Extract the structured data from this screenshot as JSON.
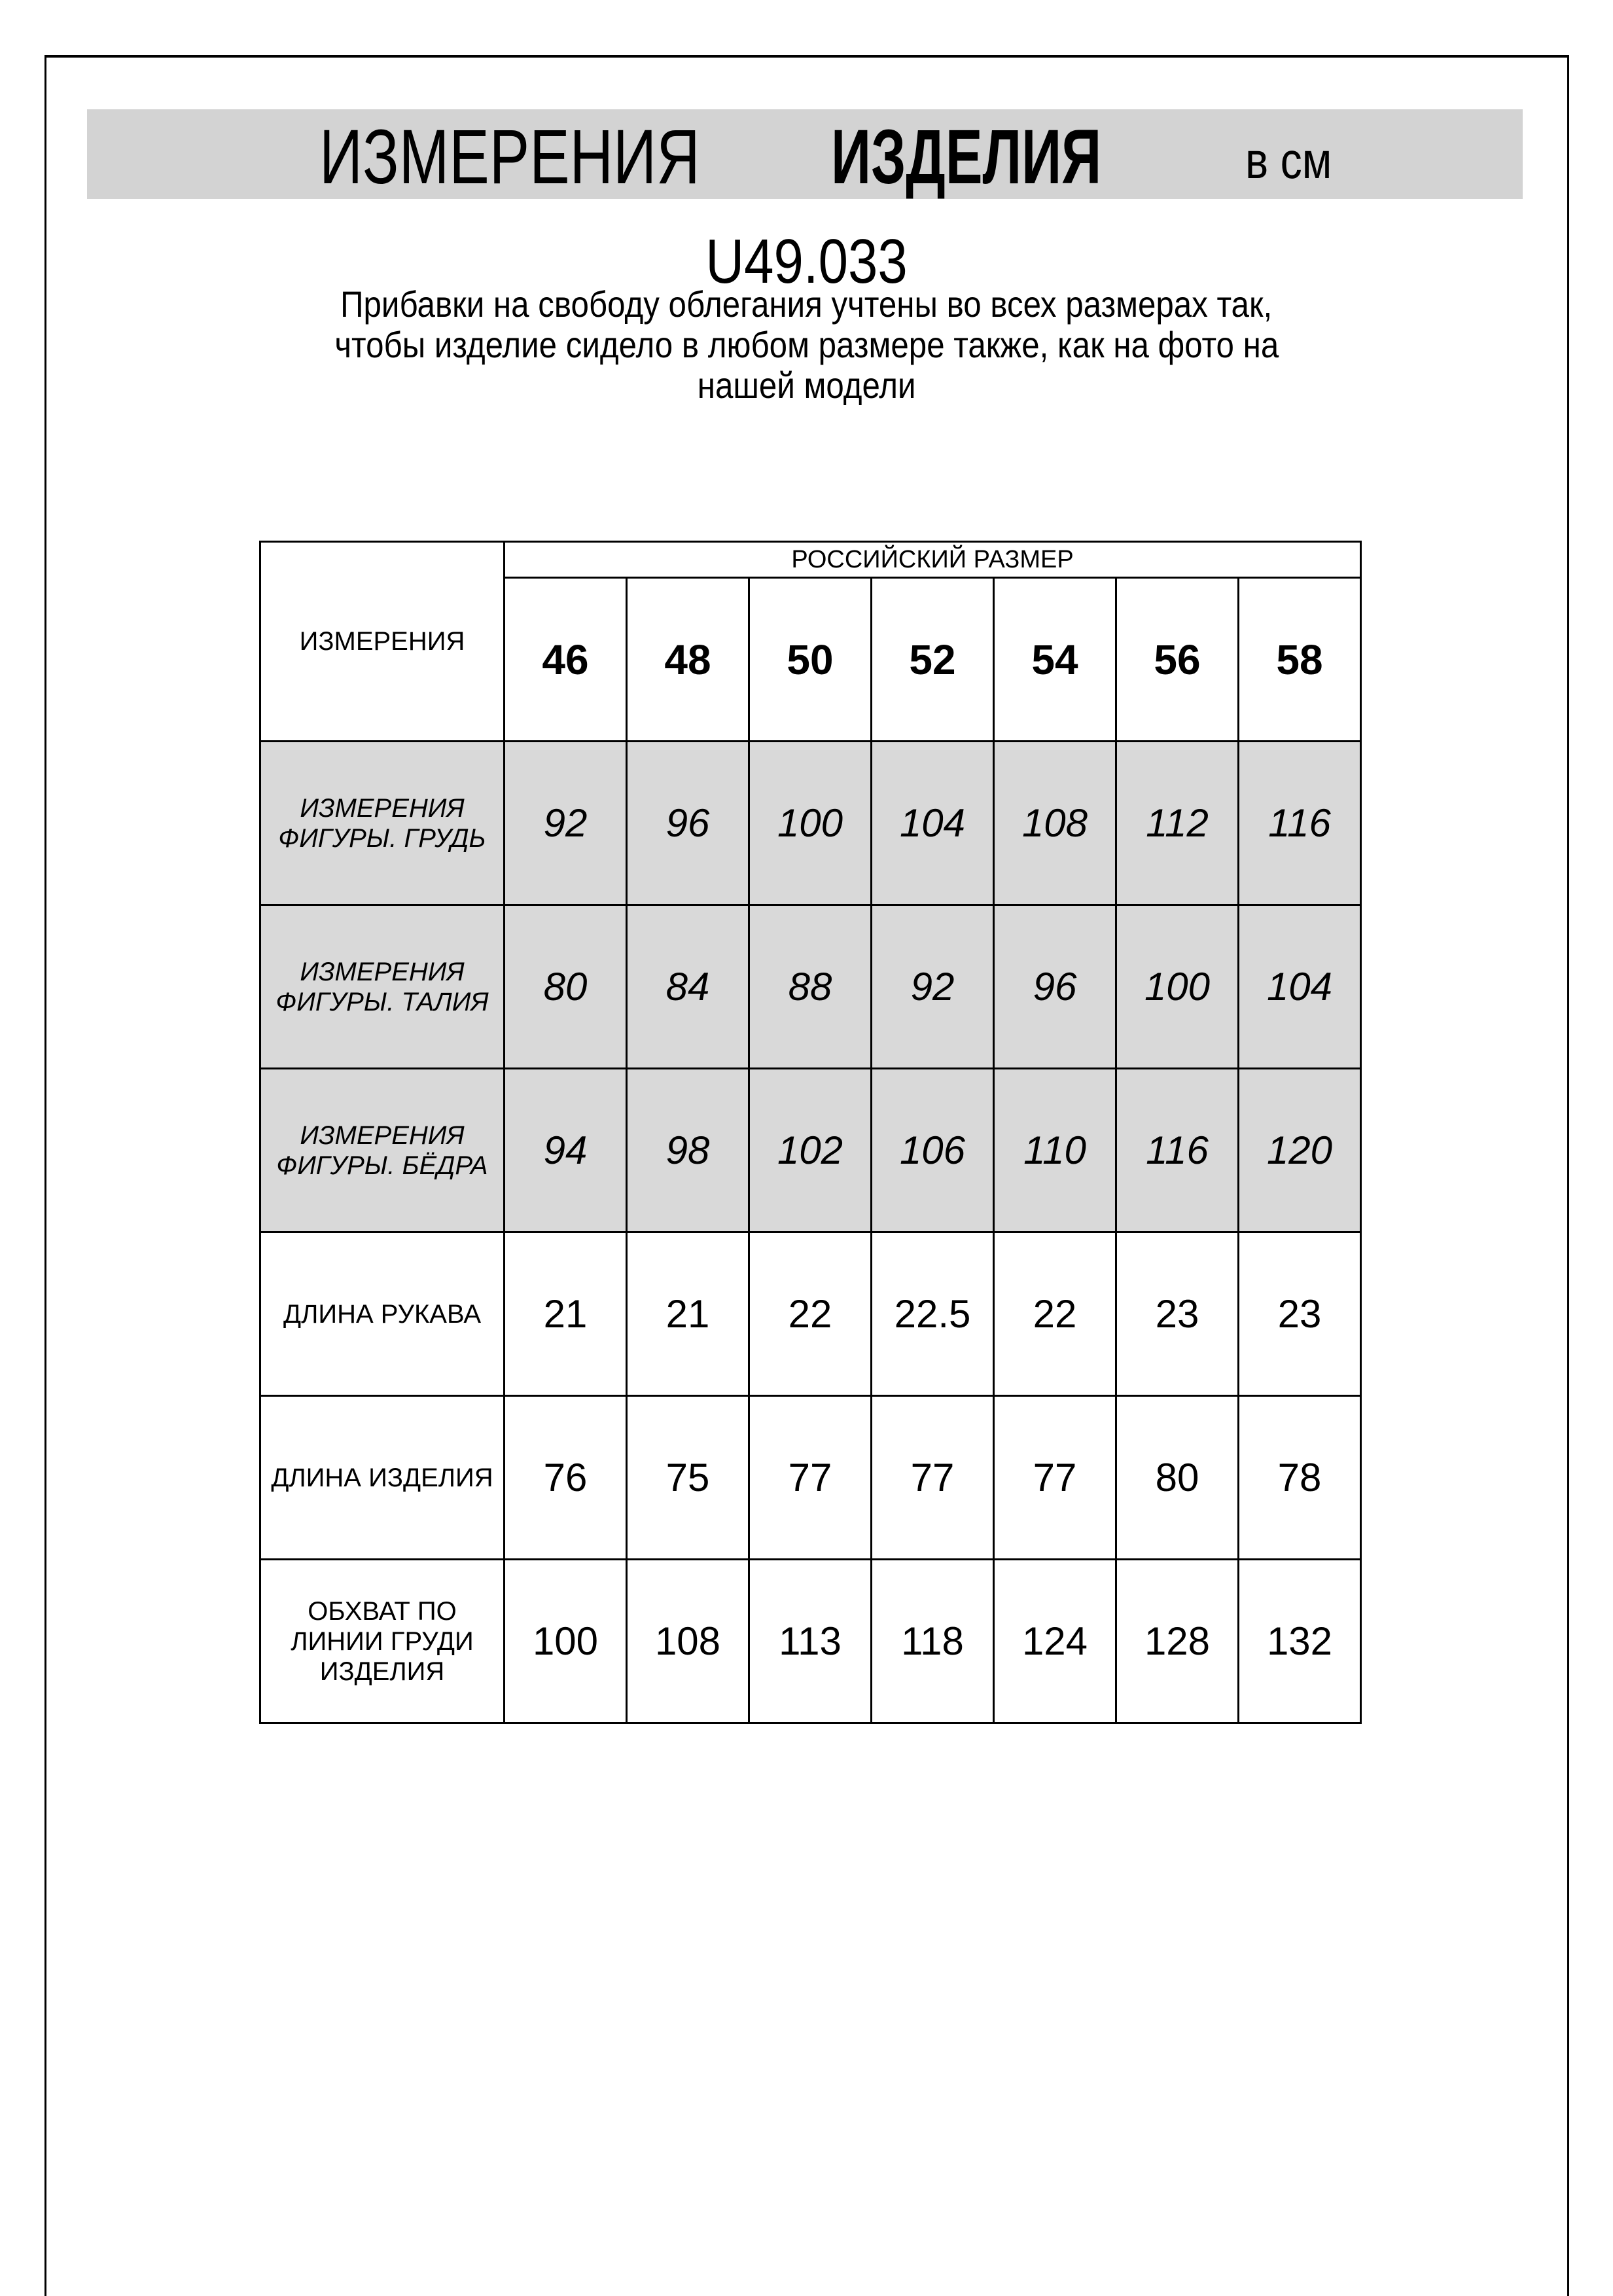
{
  "header": {
    "title_regular": "ИЗМЕРЕНИЯ",
    "title_bold": "ИЗДЕЛИЯ",
    "unit": "в см"
  },
  "product_code": "U49.033",
  "note_lines": [
    "Прибавки на свободу облегания учтены во всех размерах так,",
    "чтобы изделие сидело в любом размере также, как на фото на",
    "нашей модели"
  ],
  "table": {
    "corner_label": "ИЗМЕРЕНИЯ",
    "size_group_label": "РОССИЙСКИЙ РАЗМЕР",
    "sizes": [
      "46",
      "48",
      "50",
      "52",
      "54",
      "56",
      "58"
    ],
    "rows": [
      {
        "label_lines": [
          "ИЗМЕРЕНИЯ",
          "ФИГУРЫ. ГРУДЬ"
        ],
        "values": [
          "92",
          "96",
          "100",
          "104",
          "108",
          "112",
          "116"
        ]
      },
      {
        "label_lines": [
          "ИЗМЕРЕНИЯ",
          "ФИГУРЫ. ТАЛИЯ"
        ],
        "values": [
          "80",
          "84",
          "88",
          "92",
          "96",
          "100",
          "104"
        ]
      },
      {
        "label_lines": [
          "ИЗМЕРЕНИЯ",
          "ФИГУРЫ. БЁДРА"
        ],
        "values": [
          "94",
          "98",
          "102",
          "106",
          "110",
          "116",
          "120"
        ]
      },
      {
        "label_lines": [
          "ДЛИНА РУКАВА"
        ],
        "values": [
          "21",
          "21",
          "22",
          "22.5",
          "22",
          "23",
          "23"
        ]
      },
      {
        "label_lines": [
          "ДЛИНА ИЗДЕЛИЯ"
        ],
        "values": [
          "76",
          "75",
          "77",
          "77",
          "77",
          "80",
          "78"
        ]
      },
      {
        "label_lines": [
          "ОБХВАТ ПО",
          "ЛИНИИ ГРУДИ",
          "ИЗДЕЛИЯ"
        ],
        "values": [
          "100",
          "108",
          "113",
          "118",
          "124",
          "128",
          "132"
        ]
      }
    ]
  },
  "colors": {
    "header_band": "#d3d3d3",
    "body_measure_rows": "#d9d9d9"
  }
}
